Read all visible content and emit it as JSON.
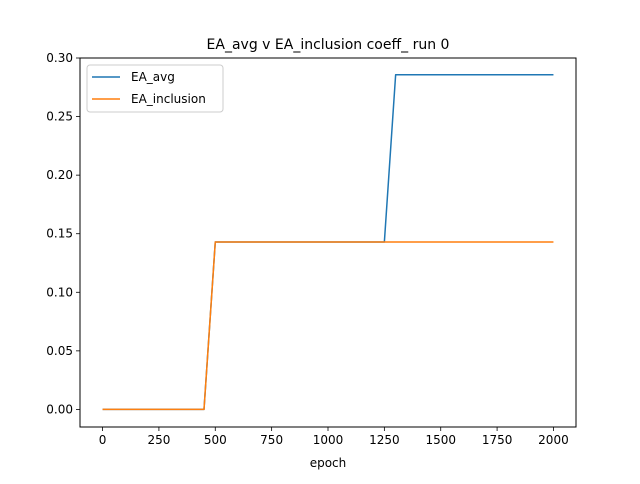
{
  "chart_data": {
    "type": "line",
    "title": "EA_avg v EA_inclusion coeff_ run 0",
    "xlabel": "epoch",
    "ylabel": "",
    "xlim": [
      -100,
      2100
    ],
    "ylim": [
      -0.015,
      0.3
    ],
    "xticks": [
      0,
      250,
      500,
      750,
      1000,
      1250,
      1500,
      1750,
      2000
    ],
    "xtick_labels": [
      "0",
      "250",
      "500",
      "750",
      "1000",
      "1250",
      "1500",
      "1750",
      "2000"
    ],
    "yticks": [
      0.0,
      0.05,
      0.1,
      0.15,
      0.2,
      0.25,
      0.3
    ],
    "ytick_labels": [
      "0.00",
      "0.05",
      "0.10",
      "0.15",
      "0.20",
      "0.25",
      "0.30"
    ],
    "grid": false,
    "legend_position": "upper-left",
    "series": [
      {
        "name": "EA_avg",
        "color": "#1f77b4",
        "x": [
          0,
          450,
          500,
          1250,
          1300,
          2000
        ],
        "y": [
          0.0,
          0.0,
          0.1429,
          0.1429,
          0.2857,
          0.2857
        ]
      },
      {
        "name": "EA_inclusion",
        "color": "#ff7f0e",
        "x": [
          0,
          450,
          500,
          2000
        ],
        "y": [
          0.0,
          0.0,
          0.1429,
          0.1429
        ]
      }
    ]
  }
}
